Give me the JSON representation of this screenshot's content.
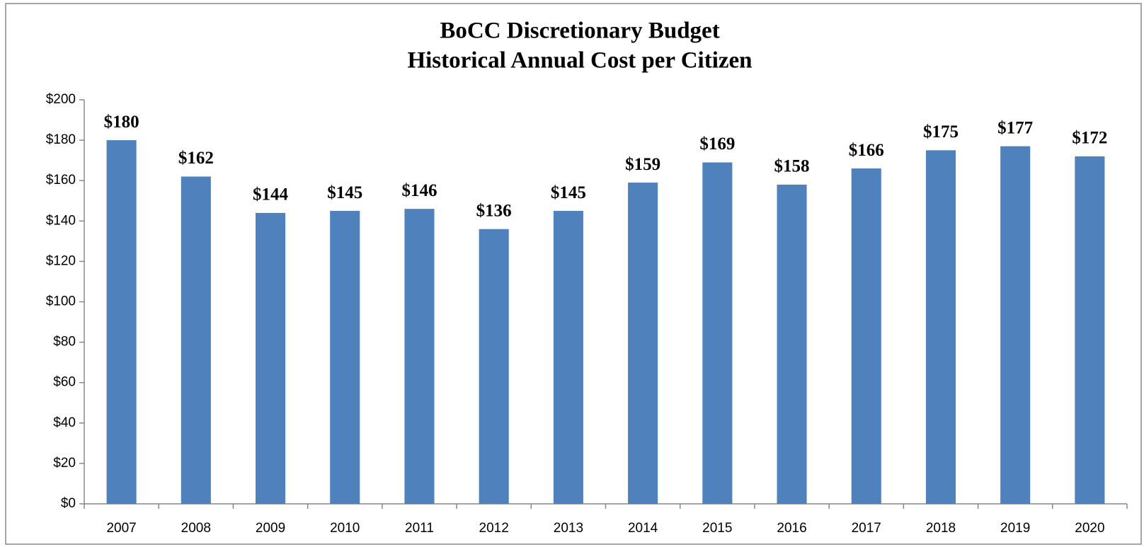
{
  "chart_data": {
    "type": "bar",
    "title": "BoCC Discretionary Budget",
    "subtitle": "Historical Annual Cost per Citizen",
    "categories": [
      "2007",
      "2008",
      "2009",
      "2010",
      "2011",
      "2012",
      "2013",
      "2014",
      "2015",
      "2016",
      "2017",
      "2018",
      "2019",
      "2020"
    ],
    "values": [
      180,
      162,
      144,
      145,
      146,
      136,
      145,
      159,
      169,
      158,
      166,
      175,
      177,
      172
    ],
    "value_labels": [
      "$180",
      "$162",
      "$144",
      "$145",
      "$146",
      "$136",
      "$145",
      "$159",
      "$169",
      "$158",
      "$166",
      "$175",
      "$177",
      "$172"
    ],
    "color": "#4f81bd",
    "ylim": [
      0,
      200
    ],
    "yticks": [
      {
        "value": 0,
        "label": "$0"
      },
      {
        "value": 20,
        "label": "$20"
      },
      {
        "value": 40,
        "label": "$40"
      },
      {
        "value": 60,
        "label": "$60"
      },
      {
        "value": 80,
        "label": "$80"
      },
      {
        "value": 100,
        "label": "$100"
      },
      {
        "value": 120,
        "label": "$120"
      },
      {
        "value": 140,
        "label": "$140"
      },
      {
        "value": 160,
        "label": "$160"
      },
      {
        "value": 180,
        "label": "$180"
      },
      {
        "value": 200,
        "label": "$200"
      }
    ],
    "grid": false
  }
}
